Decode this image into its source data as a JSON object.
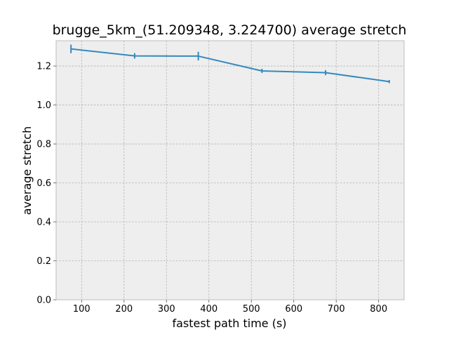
{
  "chart_data": {
    "type": "line",
    "title": "brugge_5km_(51.209348, 3.224700) average stretch",
    "xlabel": "fastest path time (s)",
    "ylabel": "average stretch",
    "xlim": [
      40,
      860
    ],
    "ylim": [
      0.0,
      1.33
    ],
    "xticks": [
      100,
      200,
      300,
      400,
      500,
      600,
      700,
      800
    ],
    "yticks": [
      0.0,
      0.2,
      0.4,
      0.6,
      0.8,
      1.0,
      1.2
    ],
    "ytick_labels": [
      "0.0",
      "0.2",
      "0.4",
      "0.6",
      "0.8",
      "1.0",
      "1.2"
    ],
    "grid": true,
    "series": [
      {
        "color": "#348abd",
        "x": [
          75,
          225,
          375,
          525,
          675,
          825
        ],
        "y": [
          1.288,
          1.252,
          1.251,
          1.175,
          1.166,
          1.12
        ],
        "yerr": [
          0.022,
          0.014,
          0.022,
          0.011,
          0.013,
          0.008
        ]
      }
    ],
    "colors": {
      "plot_background": "#eeeeee",
      "grid": "#b2b2b2",
      "frame": "#bcbcbc"
    }
  }
}
